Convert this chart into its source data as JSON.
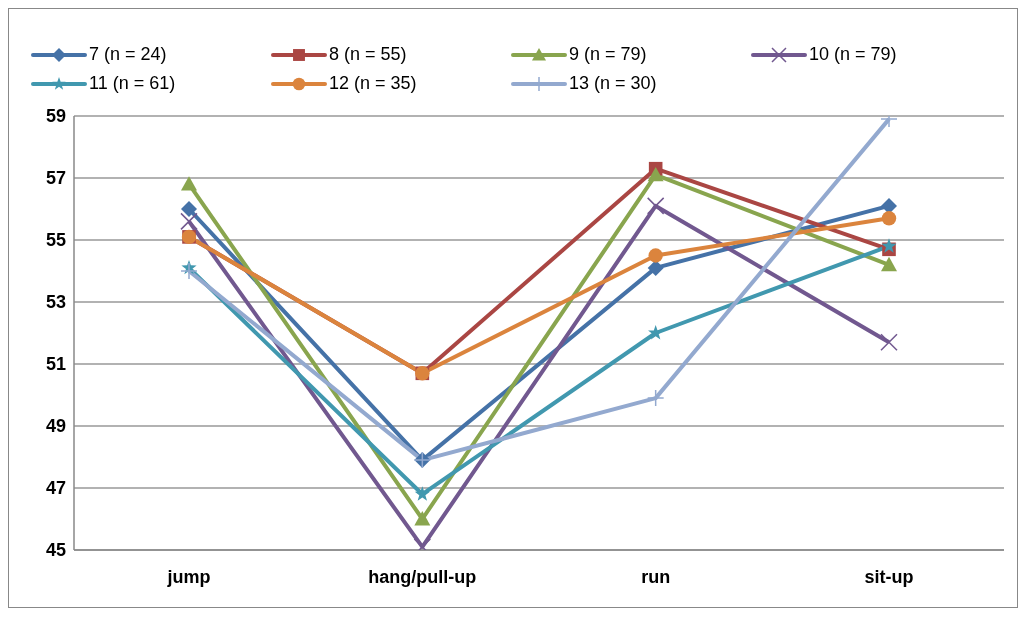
{
  "chart_data": {
    "type": "line",
    "categories": [
      "jump",
      "hang/pull-up",
      "run",
      "sit-up"
    ],
    "series": [
      {
        "name": "7 (n = 24)",
        "color": "#4572a7",
        "marker": "diamond",
        "values": [
          56.0,
          47.9,
          54.1,
          56.1
        ]
      },
      {
        "name": "8 (n = 55)",
        "color": "#aa4643",
        "marker": "square",
        "values": [
          55.1,
          50.7,
          57.3,
          54.7
        ]
      },
      {
        "name": "9 (n = 79)",
        "color": "#89a54e",
        "marker": "triangle",
        "values": [
          56.8,
          46.0,
          57.1,
          54.2
        ]
      },
      {
        "name": "10 (n = 79)",
        "color": "#71588f",
        "marker": "x",
        "values": [
          55.6,
          45.1,
          56.1,
          51.7
        ]
      },
      {
        "name": "11 (n = 61)",
        "color": "#4198af",
        "marker": "star",
        "values": [
          54.1,
          46.8,
          52.0,
          54.8
        ]
      },
      {
        "name": "12 (n = 35)",
        "color": "#db843d",
        "marker": "circle",
        "values": [
          55.1,
          50.7,
          54.5,
          55.7
        ]
      },
      {
        "name": "13 (n = 30)",
        "color": "#93a9cf",
        "marker": "cross",
        "values": [
          54.0,
          47.9,
          49.9,
          58.9
        ]
      }
    ],
    "ylim": [
      45,
      59
    ],
    "yticks": [
      45,
      47,
      49,
      51,
      53,
      55,
      57,
      59
    ],
    "grid": "y",
    "legend": "top",
    "line_style": "solid"
  }
}
